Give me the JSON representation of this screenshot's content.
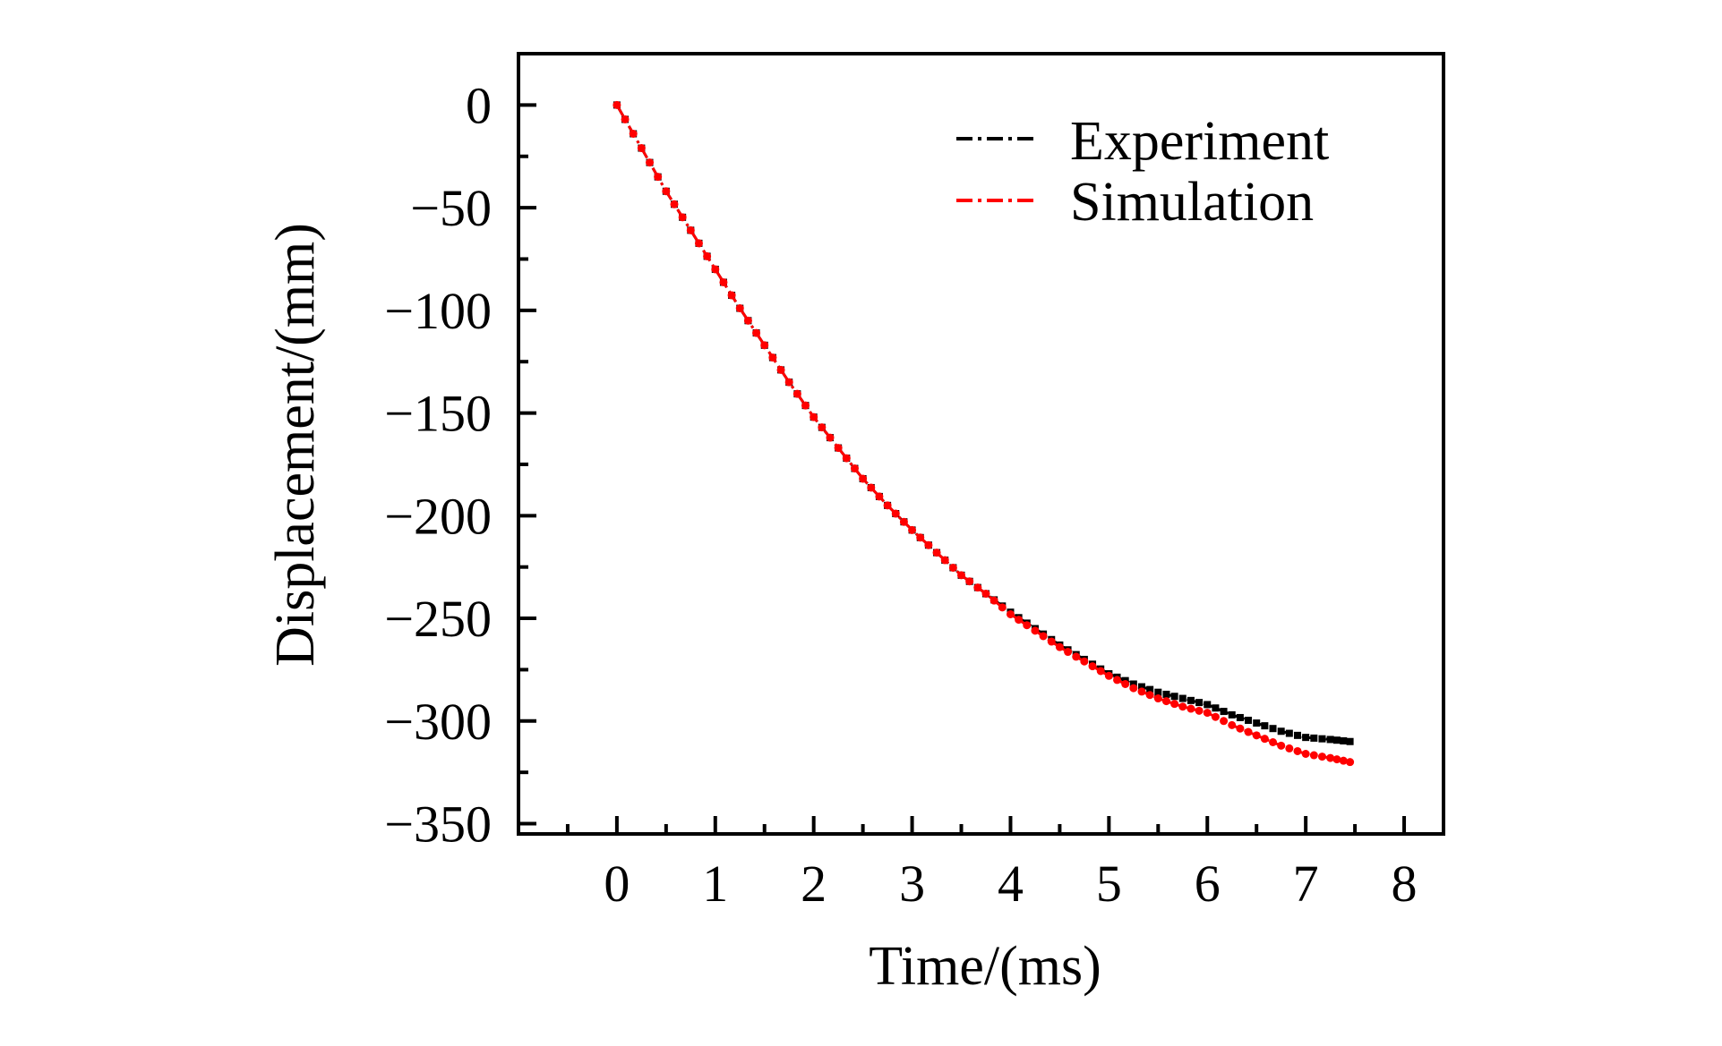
{
  "chart_data": {
    "type": "line",
    "title": "",
    "xlabel": "Time/(ms)",
    "ylabel": "Displacement/(mm)",
    "xlim": [
      -1.0,
      8.4
    ],
    "ylim": [
      -355,
      25
    ],
    "xticks": [
      0,
      1,
      2,
      3,
      4,
      5,
      6,
      7,
      8
    ],
    "xtick_labels": [
      "0",
      "1",
      "2",
      "3",
      "4",
      "5",
      "6",
      "7",
      "8"
    ],
    "yticks": [
      0,
      -50,
      -100,
      -150,
      -200,
      -250,
      -300,
      -350
    ],
    "ytick_labels": [
      "0",
      "−50",
      "−100",
      "−150",
      "−200",
      "−250",
      "−300",
      "−350"
    ],
    "grid": false,
    "legend_position": "top-right",
    "x": [
      0,
      0.25,
      0.5,
      0.75,
      1,
      1.25,
      1.5,
      1.75,
      2,
      2.25,
      2.5,
      2.75,
      3,
      3.25,
      3.5,
      3.75,
      4,
      4.25,
      4.5,
      4.75,
      5,
      5.25,
      5.5,
      5.75,
      6,
      6.25,
      6.5,
      6.75,
      7,
      7.25,
      7.45
    ],
    "series": [
      {
        "name": "Experiment",
        "color": "#000000",
        "marker": "square",
        "line_style": "dash-dot",
        "values": [
          0,
          -21,
          -42,
          -61,
          -80,
          -99,
          -117,
          -135,
          -152,
          -167,
          -182,
          -195,
          -207,
          -218,
          -229,
          -238,
          -247,
          -255,
          -263,
          -270,
          -277,
          -282,
          -286,
          -289,
          -292,
          -297,
          -301,
          -305,
          -308,
          -309,
          -310
        ]
      },
      {
        "name": "Simulation",
        "color": "#ff0000",
        "marker": "circle",
        "line_style": "dash-dot",
        "values": [
          0,
          -21,
          -42,
          -61,
          -80,
          -99,
          -117,
          -135,
          -152,
          -167,
          -182,
          -195,
          -207,
          -218,
          -229,
          -238,
          -248,
          -256,
          -264,
          -271,
          -278,
          -284,
          -289,
          -293,
          -296,
          -302,
          -307,
          -312,
          -316,
          -318,
          -320
        ]
      }
    ]
  }
}
